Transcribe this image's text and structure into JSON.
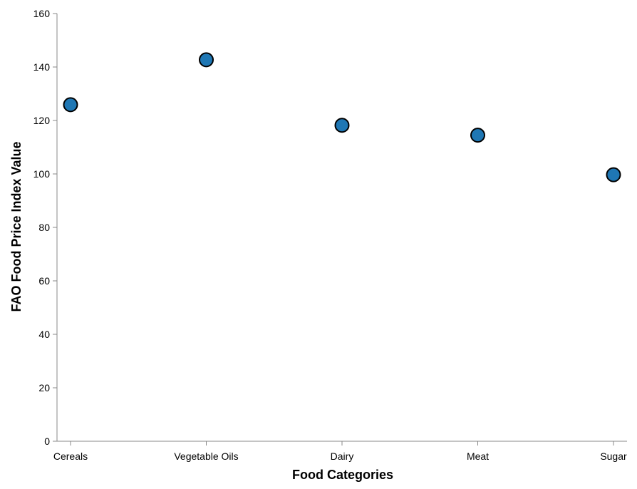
{
  "chart_data": {
    "type": "scatter",
    "title": "",
    "xlabel": "Food Categories",
    "ylabel": "FAO Food Price Index Value",
    "categories": [
      "Cereals",
      "Vegetable Oils",
      "Dairy",
      "Meat",
      "Sugar"
    ],
    "values": [
      125.9,
      142.7,
      118.2,
      114.5,
      99.7
    ],
    "ylim": [
      0,
      160
    ],
    "yticks": [
      0,
      20,
      40,
      60,
      80,
      100,
      120,
      140,
      160
    ],
    "grid": false,
    "marker_color": "#1f77b4",
    "marker_stroke": "#000000"
  }
}
